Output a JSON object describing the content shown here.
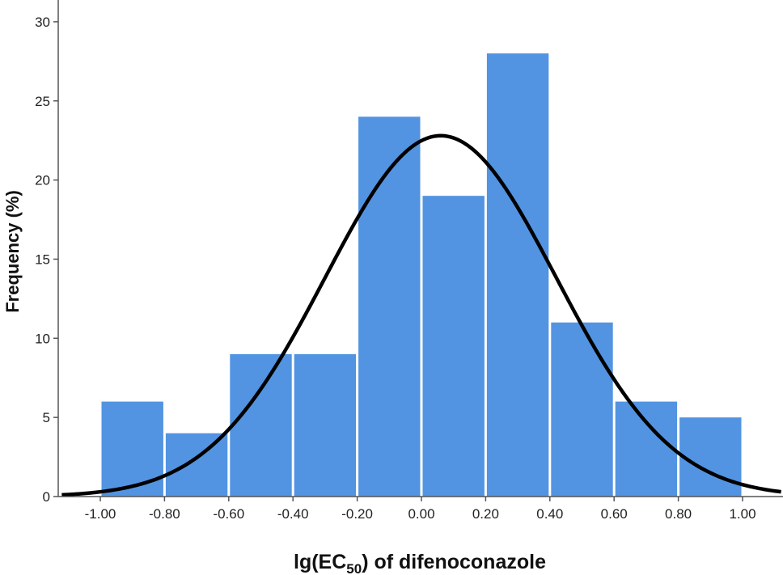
{
  "chart_data": {
    "type": "bar",
    "subtype": "histogram",
    "xlabel_main": "lg(EC",
    "xlabel_sub": "50",
    "xlabel_tail": ") of difenoconazole",
    "ylabel": "Frequency (%)",
    "bins": [
      {
        "start": -1.0,
        "end": -0.8,
        "value": 6
      },
      {
        "start": -0.8,
        "end": -0.6,
        "value": 4
      },
      {
        "start": -0.6,
        "end": -0.4,
        "value": 9
      },
      {
        "start": -0.4,
        "end": -0.2,
        "value": 9
      },
      {
        "start": -0.2,
        "end": 0.0,
        "value": 24
      },
      {
        "start": 0.0,
        "end": 0.2,
        "value": 19
      },
      {
        "start": 0.2,
        "end": 0.4,
        "value": 28
      },
      {
        "start": 0.4,
        "end": 0.6,
        "value": 11
      },
      {
        "start": 0.6,
        "end": 0.8,
        "value": 6
      },
      {
        "start": 0.8,
        "end": 1.0,
        "value": 5
      }
    ],
    "xticks": [
      "-1.00",
      "-0.80",
      "-0.60",
      "-0.40",
      "-0.20",
      "0.00",
      "0.20",
      "0.40",
      "0.60",
      "0.80",
      "1.00"
    ],
    "yticks": [
      "0",
      "5",
      "10",
      "15",
      "20",
      "25",
      "30"
    ],
    "xlim": [
      -1.12,
      1.12
    ],
    "ylim": [
      0,
      30
    ],
    "normal_curve": {
      "mean": 0.06,
      "sd": 0.36,
      "peak": 22.8
    },
    "bar_color": "#5294e2",
    "curve_color": "#000000",
    "grid": false
  }
}
